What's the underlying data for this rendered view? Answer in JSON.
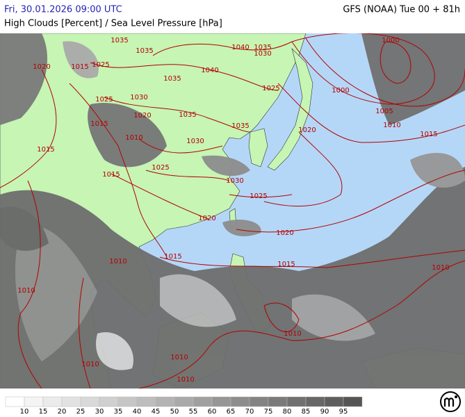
{
  "header": {
    "datetime": "Fri, 30.01.2026 09:00 UTC",
    "model": "GFS (NOAA) Tue 00 + 81h",
    "subtitle": "High Clouds [Percent] / Sea Level Pressure [hPa]"
  },
  "isobar_labels": [
    "1035",
    "1035",
    "1040",
    "1035",
    "1030",
    "1000",
    "1020",
    "1015",
    "1025",
    "1035",
    "1040",
    "1025",
    "1000",
    "1025",
    "1030",
    "1020",
    "1035",
    "1005",
    "1010",
    "1015",
    "1035",
    "1020",
    "1010",
    "1030",
    "1015",
    "1015",
    "1025",
    "1015",
    "1030",
    "1025",
    "1020",
    "1020",
    "1015",
    "1010",
    "1015",
    "1010",
    "1010",
    "1010",
    "1010",
    "1010",
    "1010"
  ],
  "colorbar": {
    "labels": [
      10,
      15,
      20,
      25,
      30,
      35,
      40,
      45,
      50,
      55,
      60,
      65,
      70,
      75,
      80,
      85,
      90,
      95
    ],
    "colors": [
      "#ffffff",
      "#f4f4f4",
      "#ebebeb",
      "#e2e2e2",
      "#d9d9d9",
      "#d0d0d0",
      "#c6c6c6",
      "#bdbdbd",
      "#b3b3b3",
      "#aaaaaa",
      "#a0a0a0",
      "#969696",
      "#8d8d8d",
      "#838383",
      "#7a7a7a",
      "#707070",
      "#676767",
      "#5e5e5e",
      "#555555"
    ]
  }
}
